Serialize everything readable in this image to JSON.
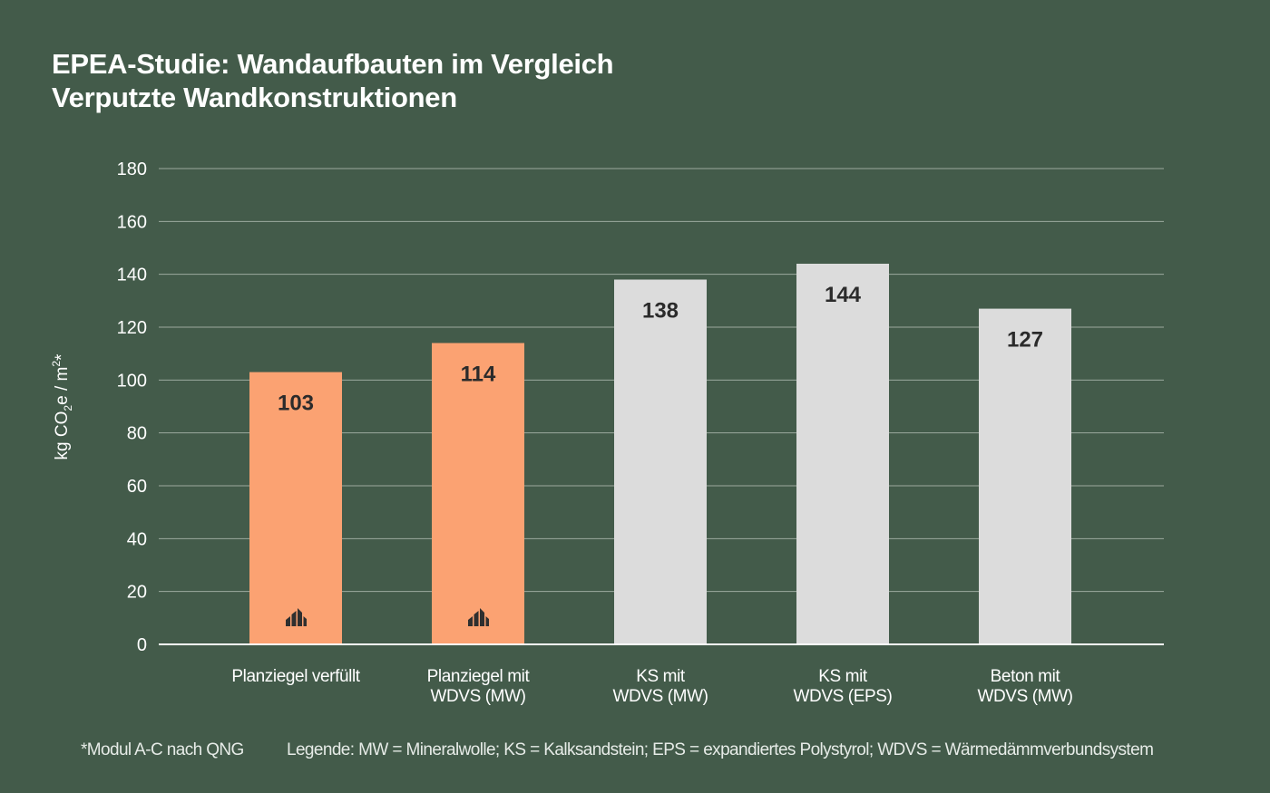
{
  "title": {
    "line1": "EPEA-Studie: Wandaufbauten im Vergleich",
    "line2": "Verputzte Wandkonstruktionen"
  },
  "chart_data": {
    "type": "bar",
    "categories": [
      [
        "Planziegel verfüllt"
      ],
      [
        "Planziegel mit",
        "WDVS (MW)"
      ],
      [
        "KS mit",
        "WDVS (MW)"
      ],
      [
        "KS mit",
        "WDVS (EPS)"
      ],
      [
        "Beton mit",
        "WDVS (MW)"
      ]
    ],
    "values": [
      103,
      114,
      138,
      144,
      127
    ],
    "data_labels": [
      "103",
      "114",
      "138",
      "144",
      "127"
    ],
    "bar_colors": [
      "#fba272",
      "#fba272",
      "#dcdcdc",
      "#dcdcdc",
      "#dcdcdc"
    ],
    "logo_on_bars": [
      true,
      true,
      false,
      false,
      false
    ],
    "logo_icon": "building-logo-icon",
    "ylabel": {
      "prefix": "kg CO",
      "sub": "2",
      "middle": "e / m",
      "sup": "2",
      "suffix": "*"
    },
    "ylim": [
      0,
      180
    ],
    "yticks": [
      0,
      20,
      40,
      60,
      80,
      100,
      120,
      140,
      160,
      180
    ],
    "grid": true,
    "legend": "none"
  },
  "footer": {
    "note": "*Modul A-C nach QNG",
    "legend_text": "Legende: MW = Mineralwolle; KS = Kalksandstein; EPS = expandiertes Polystyrol; WDVS = Wärmedämmverbundsystem"
  },
  "colors": {
    "background": "#435b4a",
    "accent": "#fba272",
    "neutral_bar": "#dcdcdc"
  }
}
